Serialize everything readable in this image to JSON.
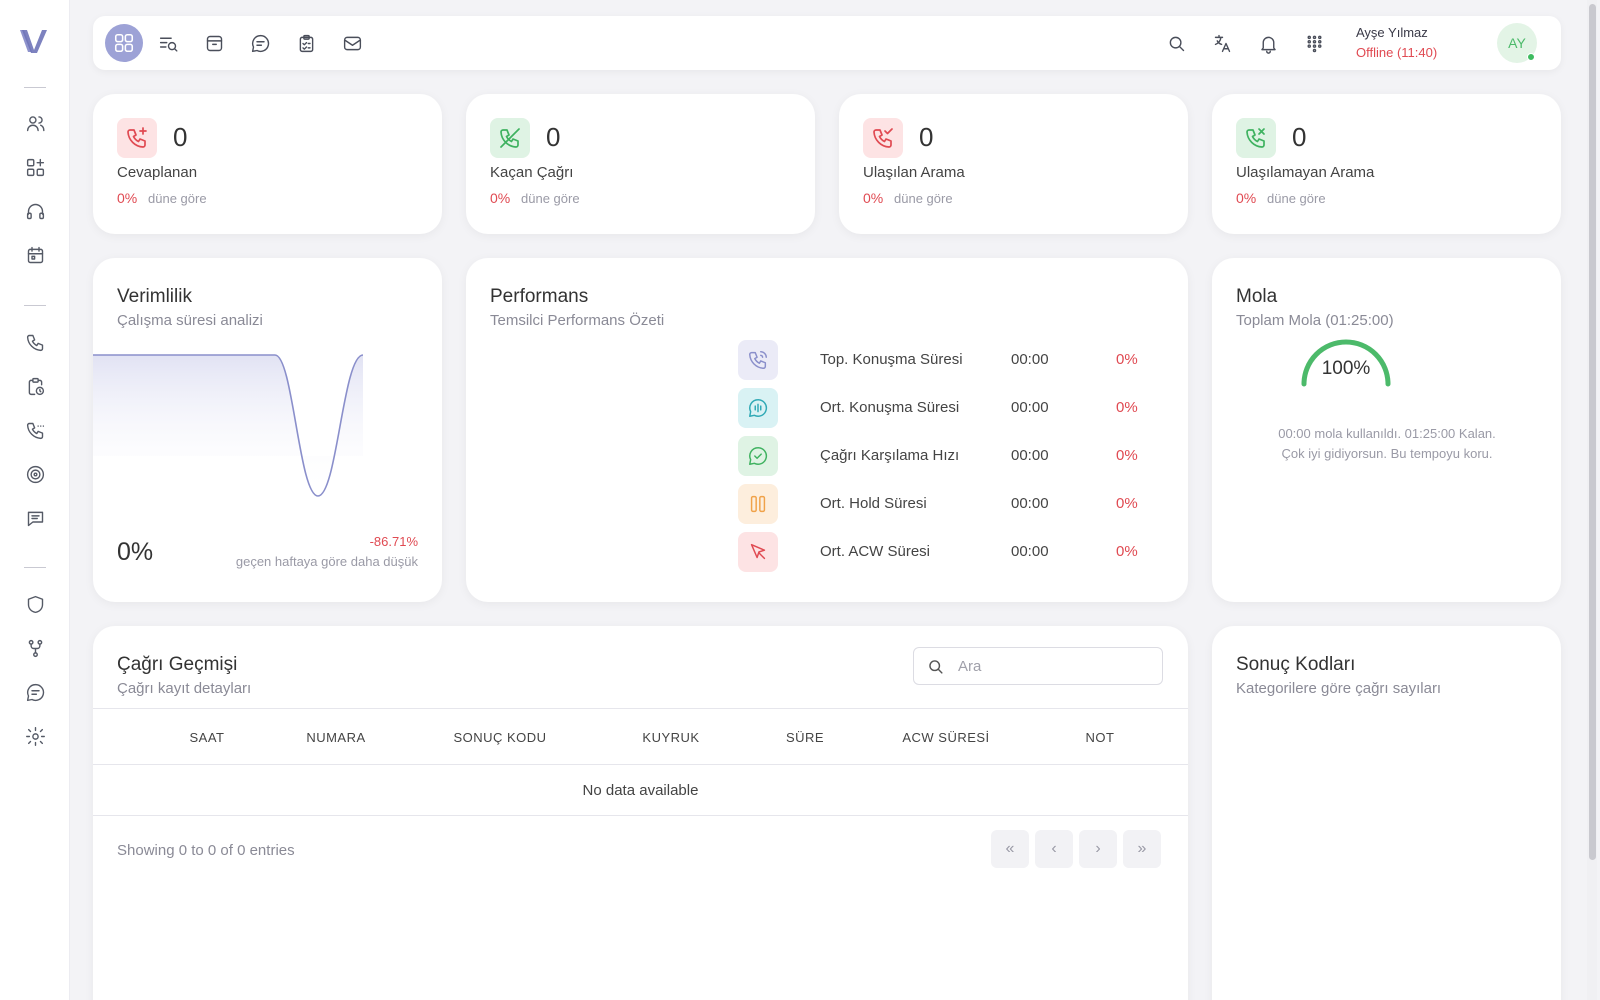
{
  "topbar": {
    "user_name": "Ayşe Yılmaz",
    "user_status": "Offline (11:40)",
    "avatar_initials": "AY"
  },
  "stats": [
    {
      "value": "0",
      "label": "Cevaplanan",
      "pct": "0%",
      "compare": "düne göre",
      "icon": "phone-plus-icon"
    },
    {
      "value": "0",
      "label": "Kaçan Çağrı",
      "pct": "0%",
      "compare": "düne göre",
      "icon": "phone-missed-icon"
    },
    {
      "value": "0",
      "label": "Ulaşılan Arama",
      "pct": "0%",
      "compare": "düne göre",
      "icon": "phone-check-icon"
    },
    {
      "value": "0",
      "label": "Ulaşılamayan Arama",
      "pct": "0%",
      "compare": "düne göre",
      "icon": "phone-x-icon"
    }
  ],
  "efficiency": {
    "title": "Verimlilik",
    "subtitle": "Çalışma süresi analizi",
    "value": "0%",
    "change": "-86.71%",
    "change_note": "geçen haftaya göre daha düşük"
  },
  "performance": {
    "title": "Performans",
    "subtitle": "Temsilci Performans Özeti",
    "rows": [
      {
        "label": "Top. Konuşma Süresi",
        "time": "00:00",
        "pct": "0%"
      },
      {
        "label": "Ort. Konuşma Süresi",
        "time": "00:00",
        "pct": "0%"
      },
      {
        "label": "Çağrı Karşılama Hızı",
        "time": "00:00",
        "pct": "0%"
      },
      {
        "label": "Ort. Hold Süresi",
        "time": "00:00",
        "pct": "0%"
      },
      {
        "label": "Ort. ACW Süresi",
        "time": "00:00",
        "pct": "0%"
      }
    ]
  },
  "mola": {
    "title": "Mola",
    "subtitle": "Toplam Mola (01:25:00)",
    "gauge_pct": "100%",
    "gauge_fraction": 1.0,
    "line1": "00:00 mola kullanıldı. 01:25:00 Kalan.",
    "line2": "Çok iyi gidiyorsun. Bu tempoyu koru."
  },
  "history": {
    "title": "Çağrı Geçmişi",
    "subtitle": "Çağrı kayıt detayları",
    "search_placeholder": "Ara",
    "columns": [
      "SAAT",
      "NUMARA",
      "SONUÇ KODU",
      "KUYRUK",
      "SÜRE",
      "ACW SÜRESİ",
      "NOT"
    ],
    "empty_text": "No data available",
    "showing": "Showing 0 to 0 of 0 entries",
    "pager": [
      "«",
      "‹",
      "›",
      "»"
    ]
  },
  "result_codes": {
    "title": "Sonuç Kodları",
    "subtitle": "Kategorilere göre çağrı sayıları"
  },
  "colors": {
    "accent": "#9da2d6",
    "danger": "#e04a52",
    "success": "#4cba6a",
    "chart_line": "#8a8fcb"
  }
}
